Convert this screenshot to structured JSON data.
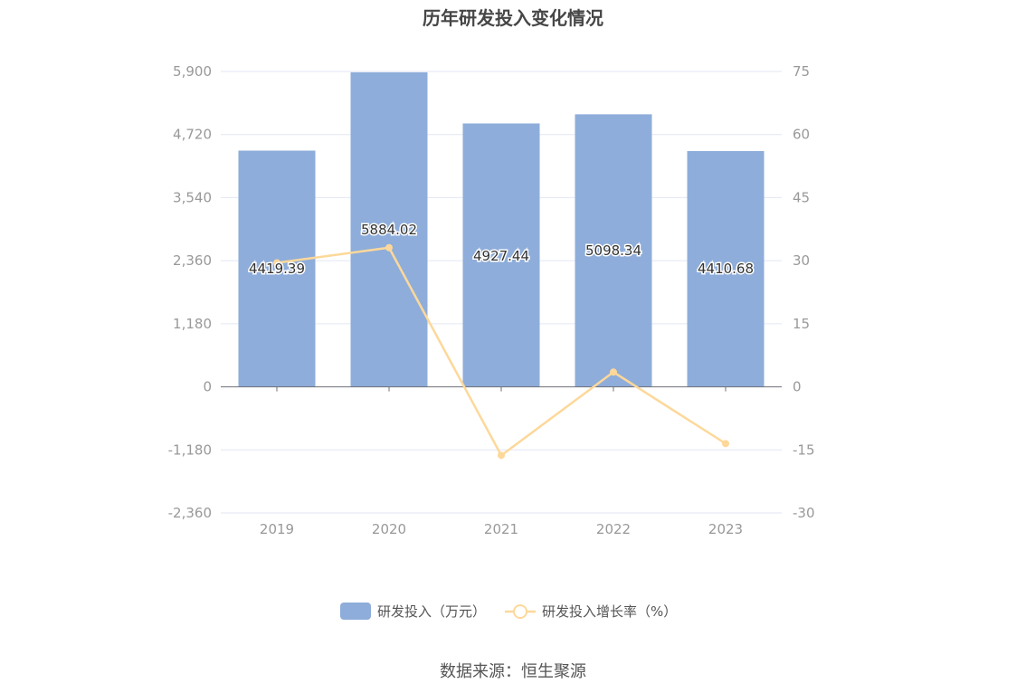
{
  "title": "历年研发投入变化情况",
  "source": "数据来源：恒生聚源",
  "colors": {
    "bar": "#8eadda",
    "line": "#fdd89a",
    "grid": "#e3e6f3",
    "axis": "#6e7079",
    "tick_text": "#999999"
  },
  "chart_data": {
    "type": "bar+line",
    "categories": [
      "2019",
      "2020",
      "2021",
      "2022",
      "2023"
    ],
    "series": [
      {
        "name": "研发投入（万元）",
        "type": "bar",
        "axis": "left",
        "values": [
          4419.39,
          5884.02,
          4927.44,
          5098.34,
          4410.68
        ],
        "labels": [
          "4419.39",
          "5884.02",
          "4927.44",
          "5098.34",
          "4410.68"
        ]
      },
      {
        "name": "研发投入增长率（%）",
        "type": "line",
        "axis": "right",
        "values": [
          29.5,
          33.1,
          -16.3,
          3.5,
          -13.5
        ]
      }
    ],
    "y_left": {
      "ticks": [
        -2360,
        -1180,
        0,
        1180,
        2360,
        3540,
        4720,
        5900
      ],
      "tick_labels": [
        "-2,360",
        "-1,180",
        "0",
        "1,180",
        "2,360",
        "3,540",
        "4,720",
        "5,900"
      ],
      "range": [
        -2360,
        5900
      ]
    },
    "y_right": {
      "ticks": [
        -30,
        -15,
        0,
        15,
        30,
        45,
        60,
        75
      ],
      "tick_labels": [
        "-30",
        "-15",
        "0",
        "15",
        "30",
        "45",
        "60",
        "75"
      ],
      "range": [
        -30,
        75
      ]
    },
    "grid": true,
    "legend_position": "bottom"
  }
}
